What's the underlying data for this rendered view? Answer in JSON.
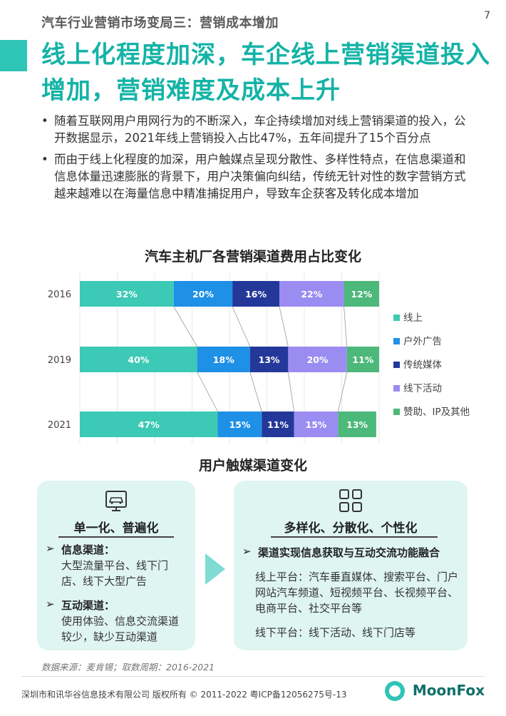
{
  "page_number": "7",
  "header": {
    "subtitle": "汽车行业营销市场变局三：营销成本增加",
    "title": "线上化程度加深，车企线上营销渠道投入增加，营销难度及成本上升"
  },
  "bullets": [
    "随着互联网用户用网行为的不断深入，车企持续增加对线上营销渠道的投入，公开数据显示，2021年线上营销投入占比47%，五年间提升了15个百分点",
    "而由于线上化程度的加深，用户触媒点呈现分散性、多样性特点，在信息渠道和信息体量迅速膨胀的背景下，用户决策偏向纠结，传统无针对性的数字营销方式越来越难以在海量信息中精准捕捉用户，导致车企获客及转化成本增加"
  ],
  "chart_data": {
    "type": "bar",
    "orientation": "horizontal-stacked-100",
    "title": "汽车主机厂各营销渠道费用占比变化",
    "categories": [
      "2016",
      "2019",
      "2021"
    ],
    "series": [
      {
        "name": "线上",
        "values": [
          32,
          40,
          47
        ],
        "color": "#3cc9b5"
      },
      {
        "name": "户外广告",
        "values": [
          20,
          18,
          15
        ],
        "color": "#1e90e6"
      },
      {
        "name": "传统媒体",
        "values": [
          16,
          13,
          11
        ],
        "color": "#24389a"
      },
      {
        "name": "线下活动",
        "values": [
          22,
          20,
          15
        ],
        "color": "#9b8cf2"
      },
      {
        "name": "赞助、IP及其他",
        "values": [
          12,
          11,
          13
        ],
        "color": "#4cb87a"
      }
    ],
    "value_suffix": "%",
    "xlim": [
      0,
      102
    ],
    "legend": "right",
    "grid": true
  },
  "section": {
    "title": "用户触媒渠道变化",
    "left_panel": {
      "icon": "screen-car-icon",
      "title": "单一化、普遍化",
      "groups": [
        {
          "head": "信息渠道：",
          "text": "大型流量平台、线下门店、线下大型广告"
        },
        {
          "head": "互动渠道：",
          "text": "使用体验、信息交流渠道较少，缺少互动渠道"
        }
      ]
    },
    "right_panel": {
      "icon": "grid-icon",
      "title": "多样化、分散化、个性化",
      "head": "渠道实现信息获取与互动交流功能融合",
      "online": "线上平台：汽车垂直媒体、搜索平台、门户网站汽车频道、短视频平台、长视频平台、电商平台、社交平台等",
      "offline": "线下平台：线下活动、线下门店等"
    }
  },
  "source": "数据来源：麦肯锡；取数周期：2016-2021",
  "footer": {
    "copyright": "深圳市和讯华谷信息技术有限公司 版权所有 © 2011-2022 粤ICP备12056275号-13",
    "brand": "MoonFox"
  },
  "colors": {
    "accent": "#14b3a6",
    "panel": "#dff5f2"
  }
}
